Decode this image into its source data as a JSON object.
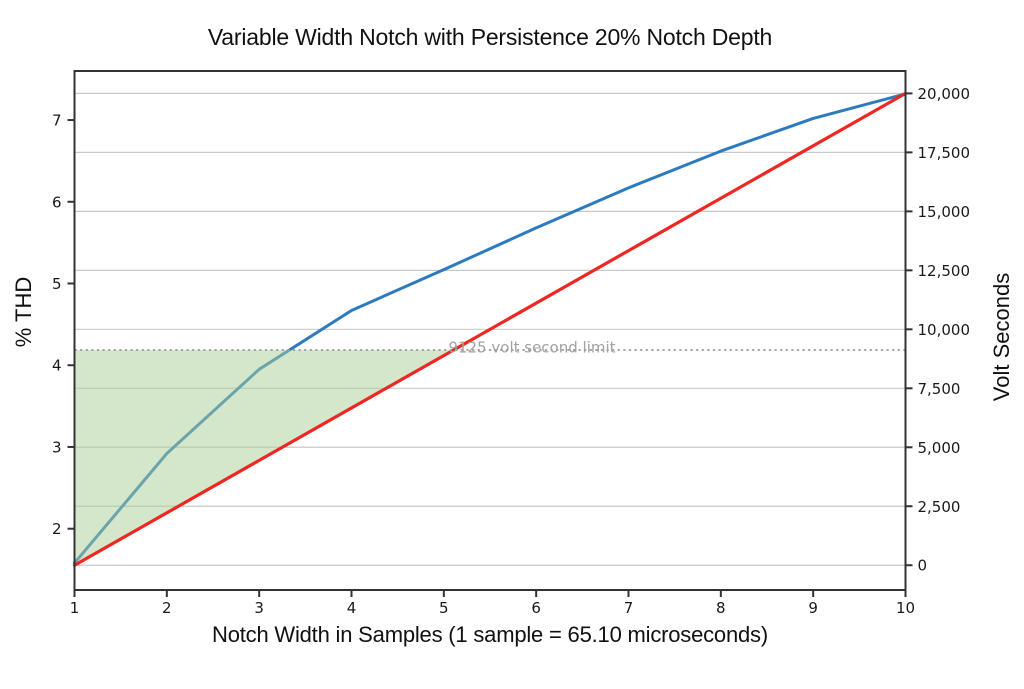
{
  "chart_data": {
    "type": "line",
    "title": "Variable Width Notch with Persistence 20% Notch Depth",
    "xlabel": "Notch Width in Samples (1 sample = 65.10 microseconds)",
    "ylabel_left": "% THD",
    "ylabel_right": "Volt Seconds",
    "xlim": [
      1,
      10
    ],
    "ylim_left": [
      1.25,
      7.6
    ],
    "ylim_right": [
      -1050,
      20950
    ],
    "grid": "horizontal gridlines at right-axis ticks",
    "legend": "none",
    "x_ticks": [
      "1",
      "2",
      "3",
      "4",
      "5",
      "6",
      "7",
      "8",
      "9",
      "10"
    ],
    "left_ticks": [
      "2",
      "3",
      "4",
      "5",
      "6",
      "7"
    ],
    "right_tick_values": [
      0,
      2500,
      5000,
      7500,
      10000,
      12500,
      15000,
      17500,
      20000
    ],
    "right_tick_labels": [
      "0",
      "2,500",
      "5,000",
      "7,500",
      "10,000",
      "12,500",
      "15,000",
      "17,500",
      "20,000"
    ],
    "series": [
      {
        "name": "percent-thd",
        "axis": "left",
        "color": "#2b7bbe",
        "points": [
          [
            1,
            1.58
          ],
          [
            2,
            2.92
          ],
          [
            3,
            3.95
          ],
          [
            4,
            4.67
          ],
          [
            5,
            5.17
          ],
          [
            6,
            5.68
          ],
          [
            7,
            6.17
          ],
          [
            8,
            6.62
          ],
          [
            9,
            7.02
          ],
          [
            10,
            7.32
          ]
        ]
      },
      {
        "name": "volt-seconds",
        "axis": "right",
        "color": "#ee2722",
        "points": [
          [
            1,
            0
          ],
          [
            10,
            20000
          ]
        ]
      }
    ],
    "limit_line": {
      "axis": "right",
      "value": 9125,
      "label": "9125 volt second limit",
      "style": "dotted",
      "color": "#999999",
      "label_color": "#a2a2a2"
    },
    "shaded_region": {
      "description": "area between the volt-seconds line and the 9125 volt second limit, from 1 sample to where the line reaches the limit",
      "fill": "#acd098",
      "opacity": 0.5
    },
    "colors": {
      "gridline": "#c9c9c9",
      "spine": "#333333",
      "background": "#ffffff"
    }
  }
}
